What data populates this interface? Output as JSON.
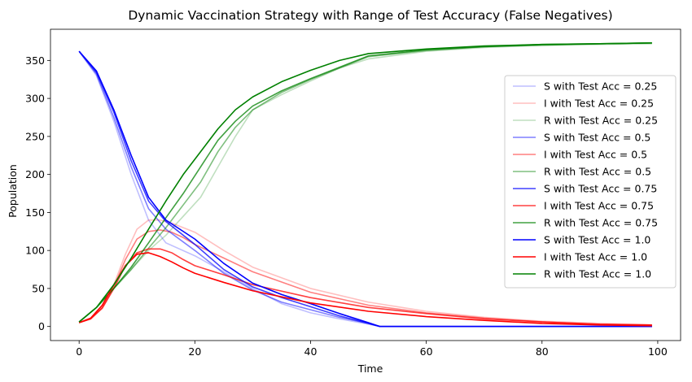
{
  "chart_data": {
    "type": "line",
    "title": "Dynamic Vaccination Strategy with Range of Test Accuracy (False Negatives)",
    "xlabel": "Time",
    "ylabel": "Population",
    "xlim": [
      -4.95,
      103.95
    ],
    "ylim": [
      -18.5,
      391
    ],
    "xticks": [
      0,
      20,
      40,
      60,
      80,
      100
    ],
    "yticks": [
      0,
      50,
      100,
      150,
      200,
      250,
      300,
      350
    ],
    "grid": false,
    "legend_position": "center-right",
    "series": [
      {
        "name": "S with Test Acc = 0.25",
        "color": "#0000ff",
        "opacity": 0.25,
        "points": [
          [
            0,
            362
          ],
          [
            3,
            330
          ],
          [
            6,
            270
          ],
          [
            9,
            200
          ],
          [
            12,
            140
          ],
          [
            15,
            110
          ],
          [
            20,
            93
          ],
          [
            25,
            72
          ],
          [
            30,
            50
          ],
          [
            35,
            30
          ],
          [
            40,
            18
          ],
          [
            45,
            10
          ],
          [
            50,
            3
          ],
          [
            52,
            0
          ],
          [
            99,
            0
          ]
        ]
      },
      {
        "name": "I with Test Acc = 0.25",
        "color": "#ff0000",
        "opacity": 0.25,
        "points": [
          [
            0,
            5
          ],
          [
            2,
            10
          ],
          [
            4,
            25
          ],
          [
            6,
            55
          ],
          [
            8,
            95
          ],
          [
            10,
            128
          ],
          [
            12,
            140
          ],
          [
            14,
            140
          ],
          [
            16,
            136
          ],
          [
            18,
            130
          ],
          [
            20,
            124
          ],
          [
            25,
            100
          ],
          [
            30,
            78
          ],
          [
            40,
            50
          ],
          [
            50,
            32
          ],
          [
            60,
            20
          ],
          [
            70,
            12
          ],
          [
            80,
            7
          ],
          [
            90,
            4
          ],
          [
            99,
            2
          ]
        ]
      },
      {
        "name": "R with Test Acc = 0.25",
        "color": "#008000",
        "opacity": 0.25,
        "points": [
          [
            0,
            6
          ],
          [
            3,
            25
          ],
          [
            6,
            50
          ],
          [
            9,
            75
          ],
          [
            12,
            100
          ],
          [
            15,
            120
          ],
          [
            18,
            145
          ],
          [
            21,
            170
          ],
          [
            24,
            210
          ],
          [
            27,
            250
          ],
          [
            30,
            285
          ],
          [
            35,
            305
          ],
          [
            40,
            323
          ],
          [
            45,
            340
          ],
          [
            50,
            352
          ],
          [
            60,
            362
          ],
          [
            70,
            367
          ],
          [
            80,
            370
          ],
          [
            90,
            371
          ],
          [
            99,
            372
          ]
        ]
      },
      {
        "name": "I with Test Acc = 0.5",
        "color": "#ff0000",
        "opacity": 0.5,
        "points": [
          [
            0,
            5
          ],
          [
            2,
            10
          ],
          [
            4,
            25
          ],
          [
            6,
            52
          ],
          [
            8,
            88
          ],
          [
            10,
            115
          ],
          [
            12,
            125
          ],
          [
            14,
            127
          ],
          [
            16,
            124
          ],
          [
            18,
            117
          ],
          [
            20,
            108
          ],
          [
            25,
            90
          ],
          [
            30,
            72
          ],
          [
            40,
            45
          ],
          [
            50,
            28
          ],
          [
            60,
            18
          ],
          [
            70,
            11
          ],
          [
            80,
            6
          ],
          [
            90,
            3
          ],
          [
            99,
            2
          ]
        ]
      },
      {
        "name": "S with Test Acc = 0.5",
        "color": "#0000ff",
        "opacity": 0.5,
        "points": [
          [
            0,
            362
          ],
          [
            3,
            332
          ],
          [
            6,
            275
          ],
          [
            9,
            210
          ],
          [
            12,
            155
          ],
          [
            15,
            128
          ],
          [
            20,
            100
          ],
          [
            25,
            70
          ],
          [
            30,
            48
          ],
          [
            35,
            32
          ],
          [
            40,
            22
          ],
          [
            45,
            12
          ],
          [
            50,
            4
          ],
          [
            52,
            0
          ],
          [
            99,
            0
          ]
        ]
      },
      {
        "name": "R with Test Acc = 0.5",
        "color": "#008000",
        "opacity": 0.5,
        "points": [
          [
            0,
            6
          ],
          [
            3,
            25
          ],
          [
            6,
            50
          ],
          [
            9,
            75
          ],
          [
            12,
            103
          ],
          [
            15,
            130
          ],
          [
            18,
            160
          ],
          [
            21,
            190
          ],
          [
            24,
            230
          ],
          [
            27,
            262
          ],
          [
            30,
            285
          ],
          [
            35,
            308
          ],
          [
            40,
            325
          ],
          [
            45,
            340
          ],
          [
            50,
            355
          ],
          [
            60,
            363
          ],
          [
            70,
            368
          ],
          [
            80,
            370
          ],
          [
            90,
            372
          ],
          [
            99,
            373
          ]
        ]
      },
      {
        "name": "I with Test Acc = 0.75",
        "color": "#ff0000",
        "opacity": 0.75,
        "points": [
          [
            0,
            5
          ],
          [
            2,
            10
          ],
          [
            4,
            24
          ],
          [
            6,
            50
          ],
          [
            8,
            80
          ],
          [
            10,
            97
          ],
          [
            12,
            102
          ],
          [
            14,
            102
          ],
          [
            16,
            97
          ],
          [
            18,
            88
          ],
          [
            20,
            80
          ],
          [
            25,
            68
          ],
          [
            30,
            55
          ],
          [
            40,
            38
          ],
          [
            50,
            25
          ],
          [
            60,
            17
          ],
          [
            70,
            10
          ],
          [
            80,
            6
          ],
          [
            90,
            3
          ],
          [
            99,
            2
          ]
        ]
      },
      {
        "name": "S with Test Acc = 0.75",
        "color": "#0000ff",
        "opacity": 0.75,
        "points": [
          [
            0,
            362
          ],
          [
            3,
            334
          ],
          [
            6,
            282
          ],
          [
            9,
            218
          ],
          [
            12,
            165
          ],
          [
            15,
            138
          ],
          [
            20,
            108
          ],
          [
            25,
            75
          ],
          [
            30,
            52
          ],
          [
            35,
            38
          ],
          [
            40,
            26
          ],
          [
            45,
            14
          ],
          [
            50,
            4
          ],
          [
            52,
            0
          ],
          [
            99,
            0
          ]
        ]
      },
      {
        "name": "R with Test Acc = 0.75",
        "color": "#008000",
        "opacity": 0.75,
        "points": [
          [
            0,
            6
          ],
          [
            3,
            25
          ],
          [
            6,
            50
          ],
          [
            9,
            78
          ],
          [
            12,
            110
          ],
          [
            15,
            143
          ],
          [
            18,
            175
          ],
          [
            21,
            210
          ],
          [
            24,
            245
          ],
          [
            27,
            270
          ],
          [
            30,
            290
          ],
          [
            35,
            310
          ],
          [
            40,
            326
          ],
          [
            45,
            341
          ],
          [
            50,
            356
          ],
          [
            60,
            364
          ],
          [
            70,
            368
          ],
          [
            80,
            371
          ],
          [
            90,
            372
          ],
          [
            99,
            373
          ]
        ]
      },
      {
        "name": "S with Test Acc = 1.0",
        "color": "#0000ff",
        "opacity": 1.0,
        "points": [
          [
            0,
            362
          ],
          [
            3,
            336
          ],
          [
            6,
            285
          ],
          [
            9,
            225
          ],
          [
            12,
            170
          ],
          [
            15,
            140
          ],
          [
            20,
            115
          ],
          [
            25,
            83
          ],
          [
            30,
            57
          ],
          [
            35,
            42
          ],
          [
            40,
            30
          ],
          [
            45,
            17
          ],
          [
            50,
            5
          ],
          [
            52,
            0
          ],
          [
            99,
            0
          ]
        ]
      },
      {
        "name": "I with Test Acc = 1.0",
        "color": "#ff0000",
        "opacity": 1.0,
        "points": [
          [
            0,
            5
          ],
          [
            2,
            11
          ],
          [
            4,
            28
          ],
          [
            6,
            55
          ],
          [
            8,
            80
          ],
          [
            10,
            95
          ],
          [
            12,
            97
          ],
          [
            14,
            92
          ],
          [
            16,
            85
          ],
          [
            18,
            77
          ],
          [
            20,
            70
          ],
          [
            25,
            58
          ],
          [
            30,
            47
          ],
          [
            40,
            31
          ],
          [
            50,
            20
          ],
          [
            60,
            13
          ],
          [
            70,
            8
          ],
          [
            80,
            4
          ],
          [
            90,
            2
          ],
          [
            99,
            1
          ]
        ]
      },
      {
        "name": "R with Test Acc = 1.0",
        "color": "#008000",
        "opacity": 1.0,
        "points": [
          [
            0,
            6
          ],
          [
            3,
            25
          ],
          [
            6,
            55
          ],
          [
            9,
            90
          ],
          [
            12,
            128
          ],
          [
            15,
            165
          ],
          [
            18,
            200
          ],
          [
            21,
            230
          ],
          [
            24,
            260
          ],
          [
            27,
            285
          ],
          [
            30,
            302
          ],
          [
            35,
            322
          ],
          [
            40,
            337
          ],
          [
            45,
            350
          ],
          [
            50,
            359
          ],
          [
            60,
            365
          ],
          [
            70,
            369
          ],
          [
            80,
            371
          ],
          [
            90,
            372
          ],
          [
            99,
            373
          ]
        ]
      }
    ],
    "legend_entries": [
      "S with Test Acc = 0.25",
      "I with Test Acc = 0.25",
      "R with Test Acc = 0.25",
      "S with Test Acc = 0.5",
      "I with Test Acc = 0.5",
      "R with Test Acc = 0.5",
      "S with Test Acc = 0.75",
      "I with Test Acc = 0.75",
      "R with Test Acc = 0.75",
      "S with Test Acc = 1.0",
      "I with Test Acc = 1.0",
      "R with Test Acc = 1.0"
    ]
  }
}
